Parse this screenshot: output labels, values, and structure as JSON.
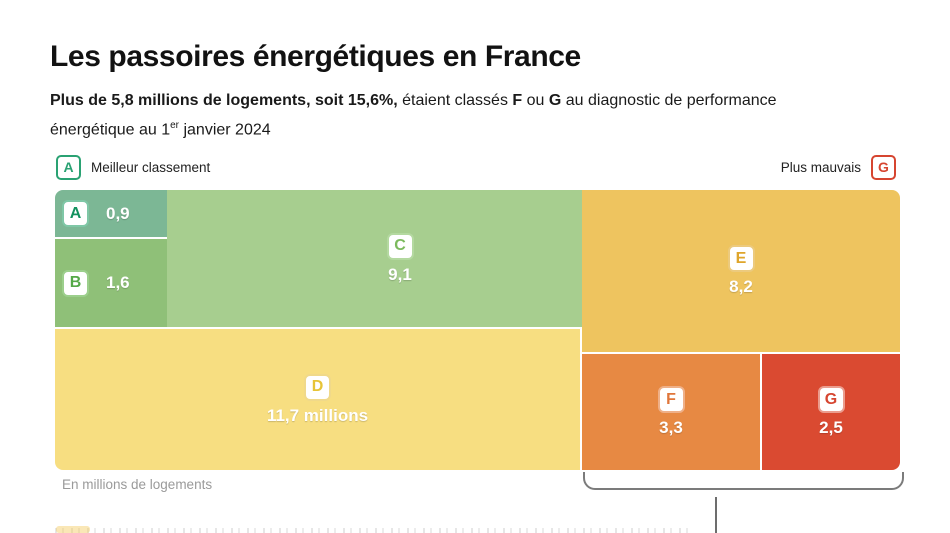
{
  "header": {
    "title": "Les passoires énergétiques en France",
    "subtitle": {
      "bold1": "Plus de 5,8 millions de logements, soit 15,6%,",
      "normal1": " étaient classés ",
      "bold2": "F",
      "normal2": " ou ",
      "bold3": "G",
      "normal3": " au diagnostic de performance énergétique au 1",
      "sup": "er",
      "normal4": " janvier 2024"
    }
  },
  "legend": {
    "best": {
      "letter": "A",
      "label": "Meilleur classement",
      "color": "#2aa273"
    },
    "worst": {
      "letter": "G",
      "label": "Plus mauvais",
      "color": "#d64530"
    }
  },
  "chart_data": {
    "type": "treemap",
    "title": "Les passoires énergétiques en France",
    "unit": "millions de logements",
    "note": "En millions de logements",
    "categories": [
      "A",
      "B",
      "C",
      "D",
      "E",
      "F",
      "G"
    ],
    "values": [
      0.9,
      1.6,
      9.1,
      11.7,
      8.2,
      3.3,
      2.5
    ],
    "highlight_group": "F+G",
    "cells": [
      {
        "letter": "A",
        "value": 0.9,
        "label": "0,9",
        "bg": "#7cb795",
        "letter_color": "#13925f",
        "border": "#7fc7a6"
      },
      {
        "letter": "B",
        "value": 1.6,
        "label": "1,6",
        "bg": "#8fc078",
        "letter_color": "#55a948",
        "border": "#9ccf8c"
      },
      {
        "letter": "C",
        "value": 9.1,
        "label": "9,1",
        "bg": "#a7ce8f",
        "letter_color": "#7cba5d",
        "border": "#b4d9a0"
      },
      {
        "letter": "D",
        "value": 11.7,
        "label": "11,7 millions",
        "bg": "#f7de81",
        "letter_color": "#e7c437",
        "border": "#f0d98a"
      },
      {
        "letter": "E",
        "value": 8.2,
        "label": "8,2",
        "bg": "#eec45f",
        "letter_color": "#dfa52b",
        "border": "#ecca7d"
      },
      {
        "letter": "F",
        "value": 3.3,
        "label": "3,3",
        "bg": "#e78943",
        "letter_color": "#e0763a",
        "border": "#efb088"
      },
      {
        "letter": "G",
        "value": 2.5,
        "label": "2,5",
        "bg": "#da4a31",
        "letter_color": "#d64530",
        "border": "#eb9d8e"
      }
    ]
  },
  "footer": {
    "note": "En millions de logements"
  }
}
